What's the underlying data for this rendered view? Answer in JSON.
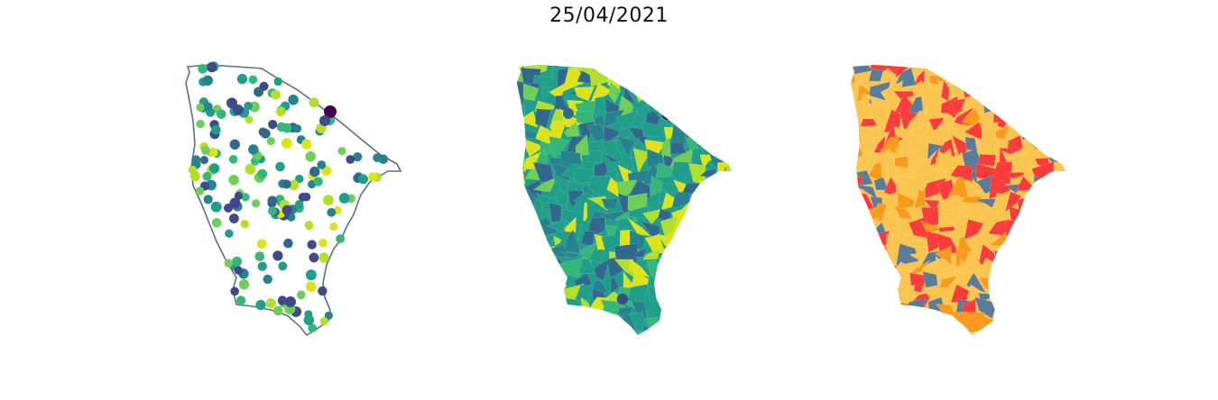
{
  "title": "25/04/2021",
  "colors": {
    "outline": "#5b6f8a",
    "viridis": [
      "#440154",
      "#3b528b",
      "#21918c",
      "#5ec962",
      "#fde725"
    ],
    "viridis_used": [
      "#440154",
      "#3e4a89",
      "#31688e",
      "#26828e",
      "#1f9e89",
      "#35b779",
      "#6ece58",
      "#b5de2b",
      "#dde318"
    ],
    "classes": [
      "#f9c54e",
      "#fa3c3c",
      "#f89a1c",
      "#5a7b9a"
    ]
  },
  "panels": [
    {
      "id": "points",
      "kind": "proportional-points"
    },
    {
      "id": "choropleth",
      "kind": "continuous-choropleth"
    },
    {
      "id": "classes",
      "kind": "categorical-choropleth"
    }
  ]
}
